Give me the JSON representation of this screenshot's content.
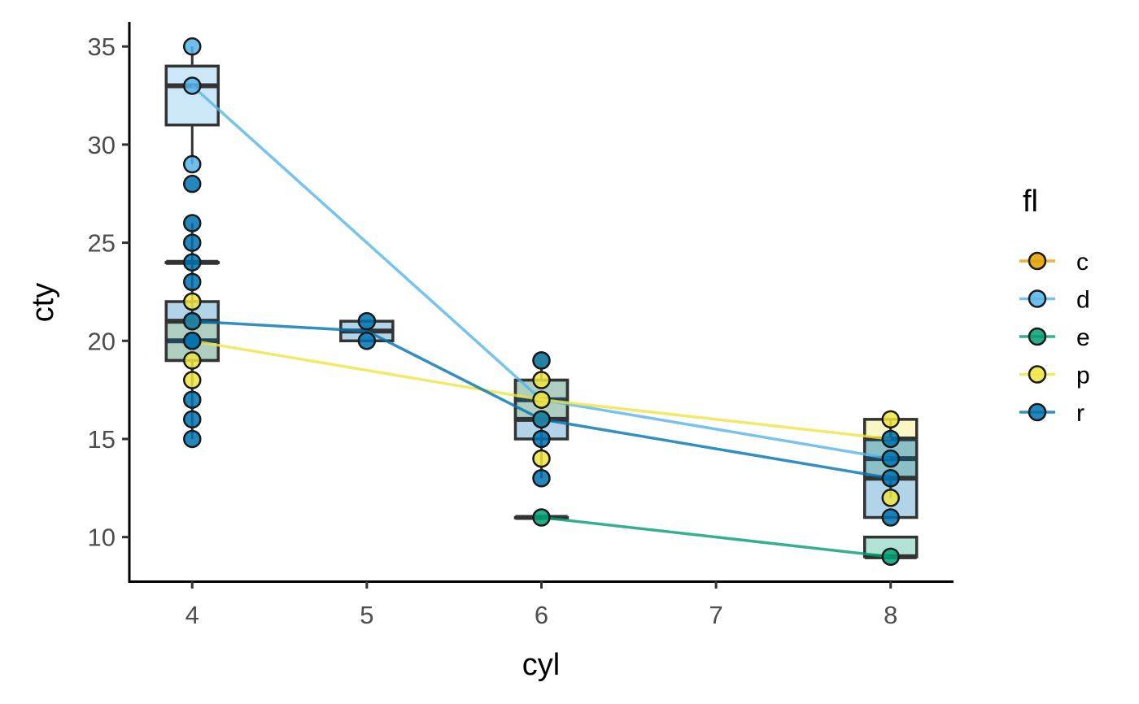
{
  "chart_data": {
    "type": "scatter",
    "xlabel": "cyl",
    "ylabel": "cty",
    "xlim": [
      3.64,
      8.36
    ],
    "ylim": [
      7.75,
      36.25
    ],
    "x_ticks": [
      4,
      5,
      6,
      7,
      8
    ],
    "y_ticks": [
      10,
      15,
      20,
      25,
      30,
      35
    ],
    "grid": false,
    "legend": {
      "title": "fl",
      "position": "right",
      "entries": [
        "c",
        "d",
        "e",
        "p",
        "r"
      ]
    },
    "colors": {
      "c": "#E69F00",
      "d": "#56B4E9",
      "e": "#009E73",
      "p": "#F0E442",
      "r": "#0072B2"
    },
    "boxplots": [
      {
        "group": "d",
        "x": 4,
        "q1": 31,
        "median": 33,
        "q3": 34,
        "whisker_low": 29,
        "whisker_high": 35
      },
      {
        "group": "e",
        "x": 4,
        "q1": 24,
        "median": 24,
        "q3": 24,
        "whisker_low": 24,
        "whisker_high": 24
      },
      {
        "group": "p",
        "x": 4,
        "q1": 19,
        "median": 20,
        "q3": 21,
        "whisker_low": 18,
        "whisker_high": 22
      },
      {
        "group": "r",
        "x": 4,
        "q1": 19,
        "median": 21,
        "q3": 22,
        "whisker_low": 15,
        "whisker_high": 26
      },
      {
        "group": "r",
        "x": 5,
        "q1": 20,
        "median": 20.5,
        "q3": 21,
        "whisker_low": 20,
        "whisker_high": 21
      },
      {
        "group": "p",
        "x": 6,
        "q1": 16,
        "median": 17,
        "q3": 18,
        "whisker_low": 14,
        "whisker_high": 19
      },
      {
        "group": "r",
        "x": 6,
        "q1": 15,
        "median": 16,
        "q3": 18,
        "whisker_low": 13,
        "whisker_high": 19
      },
      {
        "group": "e",
        "x": 6,
        "q1": 11,
        "median": 11,
        "q3": 11,
        "whisker_low": 11,
        "whisker_high": 11
      },
      {
        "group": "p",
        "x": 8,
        "q1": 13,
        "median": 15,
        "q3": 16,
        "whisker_low": 12,
        "whisker_high": 16
      },
      {
        "group": "d",
        "x": 8,
        "q1": 13,
        "median": 14,
        "q3": 15,
        "whisker_low": 12,
        "whisker_high": 16
      },
      {
        "group": "r",
        "x": 8,
        "q1": 11,
        "median": 13,
        "q3": 15,
        "whisker_low": 11,
        "whisker_high": 16
      },
      {
        "group": "e",
        "x": 8,
        "q1": 9,
        "median": 9,
        "q3": 10,
        "whisker_low": 9,
        "whisker_high": 10
      }
    ],
    "lines": [
      {
        "name": "d",
        "x": [
          4,
          6,
          8
        ],
        "y": [
          33,
          17,
          14
        ]
      },
      {
        "name": "e",
        "x": [
          6,
          8
        ],
        "y": [
          11,
          9
        ]
      },
      {
        "name": "p",
        "x": [
          4,
          6,
          8
        ],
        "y": [
          20,
          17,
          15
        ]
      },
      {
        "name": "r",
        "x": [
          4,
          5,
          6,
          8
        ],
        "y": [
          21,
          20.5,
          16,
          13
        ]
      }
    ],
    "series": [
      {
        "name": "c",
        "x": [],
        "y": []
      },
      {
        "name": "d",
        "x": [
          4,
          4,
          4
        ],
        "y": [
          35,
          33,
          29
        ]
      },
      {
        "name": "e",
        "x": [
          6,
          8
        ],
        "y": [
          11,
          9
        ]
      },
      {
        "name": "p",
        "x": [
          4,
          4,
          4,
          4,
          4,
          6,
          6,
          6,
          6,
          6,
          8,
          8
        ],
        "y": [
          22,
          21,
          20,
          19,
          18,
          19,
          18,
          17,
          16,
          14,
          16,
          12
        ]
      },
      {
        "name": "r",
        "x": [
          4,
          4,
          4,
          4,
          4,
          4,
          4,
          4,
          4,
          4,
          4,
          5,
          5,
          6,
          6,
          6,
          6,
          8,
          8,
          8,
          8
        ],
        "y": [
          28,
          26,
          25,
          24,
          23,
          21,
          20,
          17,
          16,
          15,
          20,
          21,
          20,
          19,
          15,
          16,
          13,
          15,
          14,
          13,
          11
        ]
      }
    ]
  }
}
